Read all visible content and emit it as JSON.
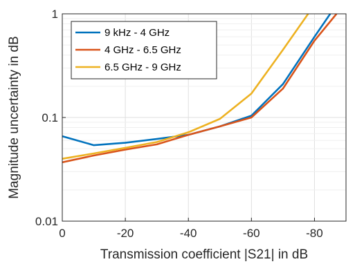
{
  "chart_data": {
    "type": "line",
    "xlabel": "Transmission coefficient |S21| in dB",
    "ylabel": "Magnitude uncertainty in dB",
    "x_reversed": true,
    "xlim": [
      0,
      -90
    ],
    "xticks": [
      0,
      -20,
      -40,
      -60,
      -80
    ],
    "xtick_labels": [
      "0",
      "-20",
      "-40",
      "-60",
      "-80"
    ],
    "yscale": "log",
    "ylim": [
      0.01,
      1
    ],
    "yticks": [
      0.01,
      0.1,
      1
    ],
    "ytick_labels": [
      "0.01",
      "0.1",
      "1"
    ],
    "grid": true,
    "legend_position": "top-left",
    "series": [
      {
        "name": "9 kHz - 4 GHz",
        "color": "#0072BD",
        "x": [
          0,
          -10,
          -20,
          -30,
          -40,
          -50,
          -60,
          -70,
          -80,
          -85
        ],
        "y": [
          0.066,
          0.054,
          0.057,
          0.062,
          0.068,
          0.082,
          0.104,
          0.21,
          0.6,
          1.0
        ]
      },
      {
        "name": "4 GHz - 6.5 GHz",
        "color": "#D95319",
        "x": [
          0,
          -10,
          -20,
          -30,
          -40,
          -50,
          -60,
          -70,
          -80,
          -87
        ],
        "y": [
          0.037,
          0.043,
          0.049,
          0.055,
          0.068,
          0.082,
          0.1,
          0.19,
          0.55,
          1.0
        ]
      },
      {
        "name": "6.5 GHz - 9 GHz",
        "color": "#EDB120",
        "x": [
          0,
          -10,
          -20,
          -30,
          -40,
          -50,
          -60,
          -70,
          -78
        ],
        "y": [
          0.04,
          0.045,
          0.051,
          0.058,
          0.072,
          0.097,
          0.17,
          0.45,
          1.0
        ]
      }
    ]
  }
}
